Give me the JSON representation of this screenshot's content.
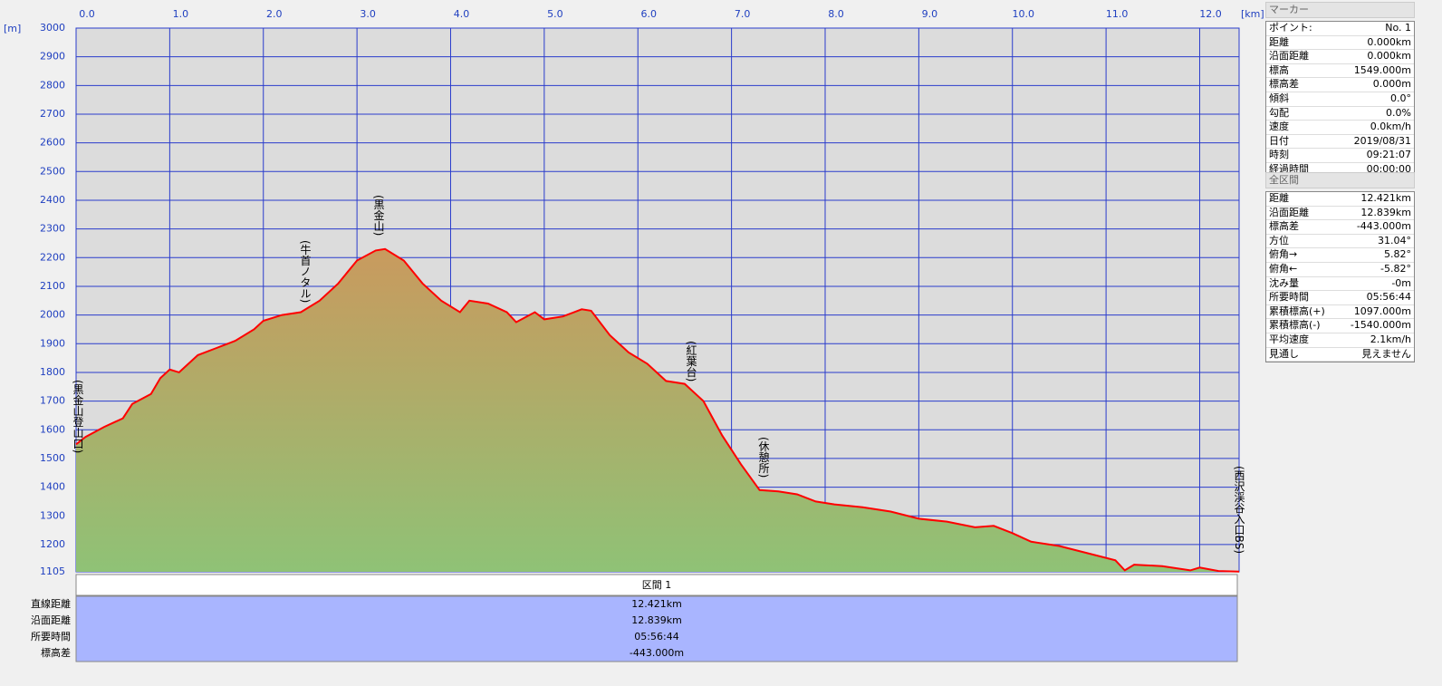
{
  "chart_data": {
    "type": "area",
    "x_unit": "[km]",
    "y_unit": "[m]",
    "xlim": [
      0,
      12.421
    ],
    "ylim": [
      1105,
      3000
    ],
    "xticks": [
      {
        "value": 0,
        "label": "0.0"
      },
      {
        "value": 1,
        "label": "1.0"
      },
      {
        "value": 2,
        "label": "2.0"
      },
      {
        "value": 3,
        "label": "3.0"
      },
      {
        "value": 4,
        "label": "4.0"
      },
      {
        "value": 5,
        "label": "5.0"
      },
      {
        "value": 6,
        "label": "6.0"
      },
      {
        "value": 7,
        "label": "7.0"
      },
      {
        "value": 8,
        "label": "8.0"
      },
      {
        "value": 9,
        "label": "9.0"
      },
      {
        "value": 10,
        "label": "10.0"
      },
      {
        "value": 11,
        "label": "11.0"
      },
      {
        "value": 12,
        "label": "12.0"
      }
    ],
    "yticks": [
      1105,
      1200,
      1300,
      1400,
      1500,
      1600,
      1700,
      1800,
      1900,
      2000,
      2100,
      2200,
      2300,
      2400,
      2500,
      2600,
      2700,
      2800,
      2900,
      3000
    ],
    "grid": true,
    "grid_color": "#2a3ccc",
    "fill_top": "#c99a5e",
    "fill_bottom": "#8fc276",
    "series": [
      {
        "color": "#ff0000",
        "x": [
          0,
          0.1,
          0.3,
          0.5,
          0.6,
          0.8,
          0.9,
          1.0,
          1.1,
          1.3,
          1.5,
          1.7,
          1.9,
          2.0,
          2.2,
          2.4,
          2.6,
          2.8,
          3.0,
          3.2,
          3.3,
          3.5,
          3.7,
          3.9,
          4.1,
          4.2,
          4.4,
          4.6,
          4.7,
          4.9,
          5.0,
          5.2,
          5.4,
          5.5,
          5.7,
          5.9,
          6.1,
          6.3,
          6.5,
          6.7,
          6.9,
          7.1,
          7.3,
          7.5,
          7.7,
          7.9,
          8.1,
          8.4,
          8.7,
          9.0,
          9.3,
          9.6,
          9.8,
          10.0,
          10.2,
          10.5,
          10.8,
          11.1,
          11.2,
          11.3,
          11.6,
          11.9,
          12.0,
          12.2,
          12.421
        ],
        "values": [
          1549,
          1575,
          1610,
          1640,
          1690,
          1725,
          1780,
          1810,
          1800,
          1860,
          1885,
          1910,
          1950,
          1980,
          2000,
          2010,
          2050,
          2110,
          2190,
          2225,
          2230,
          2190,
          2110,
          2050,
          2010,
          2050,
          2040,
          2010,
          1975,
          2010,
          1985,
          1995,
          2020,
          2015,
          1930,
          1870,
          1830,
          1770,
          1760,
          1700,
          1580,
          1480,
          1390,
          1385,
          1375,
          1350,
          1340,
          1330,
          1315,
          1290,
          1280,
          1260,
          1265,
          1240,
          1210,
          1195,
          1170,
          1145,
          1110,
          1130,
          1125,
          1110,
          1120,
          1108,
          1106
        ]
      }
    ],
    "annotations": [
      "(黒金山登山口)",
      "(牛首ノタル)",
      "(黒金山)",
      "(紅葉台)",
      "(休憩所)",
      "(西沢渓谷入口BS)"
    ]
  },
  "section": {
    "title": "区間 1",
    "rows": [
      [
        "直線距離",
        "12.421km"
      ],
      [
        "沿面距離",
        "12.839km"
      ],
      [
        "所要時間",
        "05:56:44"
      ],
      [
        "標高差",
        "-443.000m"
      ]
    ]
  },
  "marker": {
    "title": "マーカー",
    "rows": [
      [
        "ポイント:",
        "No. 1"
      ],
      [
        "距離",
        "0.000km"
      ],
      [
        "沿面距離",
        "0.000km"
      ],
      [
        "標高",
        "1549.000m"
      ],
      [
        "標高差",
        "0.000m"
      ],
      [
        "傾斜",
        "0.0°"
      ],
      [
        "勾配",
        "0.0%"
      ],
      [
        "速度",
        "0.0km/h"
      ],
      [
        "日付",
        "2019/08/31"
      ],
      [
        "時刻",
        "09:21:07"
      ],
      [
        "経過時間",
        "00:00:00"
      ]
    ]
  },
  "total": {
    "title": "全区間",
    "rows": [
      [
        "距離",
        "12.421km"
      ],
      [
        "沿面距離",
        "12.839km"
      ],
      [
        "標高差",
        "-443.000m"
      ],
      [
        "方位",
        "31.04°"
      ],
      [
        "俯角→",
        "5.82°"
      ],
      [
        "俯角←",
        "-5.82°"
      ],
      [
        "沈み量",
        "-0m"
      ],
      [
        "所要時間",
        "05:56:44"
      ],
      [
        "累積標高(+)",
        "1097.000m"
      ],
      [
        "累積標高(-)",
        "-1540.000m"
      ],
      [
        "平均速度",
        "2.1km/h"
      ],
      [
        "見通し",
        "見えません"
      ]
    ]
  }
}
